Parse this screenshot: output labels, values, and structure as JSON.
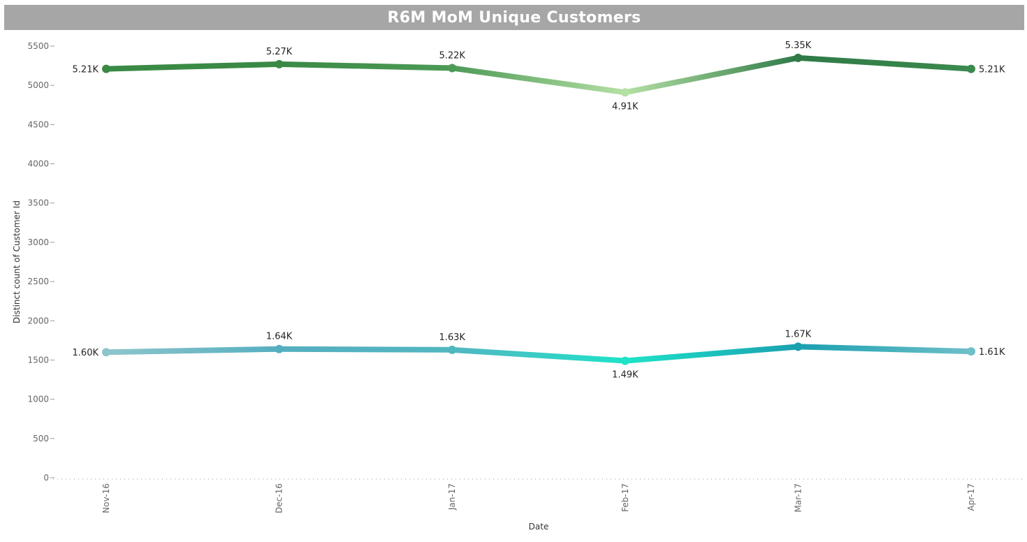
{
  "chart_data": {
    "type": "line",
    "title": "R6M MoM Unique Customers",
    "xlabel": "Date",
    "ylabel": "Distinct count of Customer Id",
    "ylim": [
      0,
      5500
    ],
    "yticks": [
      0,
      500,
      1000,
      1500,
      2000,
      2500,
      3000,
      3500,
      4000,
      4500,
      5000,
      5500
    ],
    "categories": [
      "Nov-16",
      "Dec-16",
      "Jan-17",
      "Feb-17",
      "Mar-17",
      "Apr-17"
    ],
    "grid": false,
    "legend": "none",
    "series": [
      {
        "values": [
          5210,
          5270,
          5220,
          4910,
          5350,
          5210
        ],
        "labels": [
          "5.21K",
          "5.27K",
          "5.22K",
          "4.91K",
          "5.35K",
          "5.21K"
        ],
        "colors": [
          "#3a8a45",
          "#3a8a45",
          "#4d9a57",
          "#b5e0a5",
          "#2f7a47",
          "#3b8a4e"
        ]
      },
      {
        "values": [
          1600,
          1640,
          1630,
          1490,
          1670,
          1610
        ],
        "labels": [
          "1.60K",
          "1.64K",
          "1.63K",
          "1.49K",
          "1.67K",
          "1.61K"
        ],
        "colors": [
          "#8ec5cc",
          "#55afc0",
          "#52b6c0",
          "#1ee3c8",
          "#1aa0b0",
          "#6fbfc8"
        ]
      }
    ]
  }
}
